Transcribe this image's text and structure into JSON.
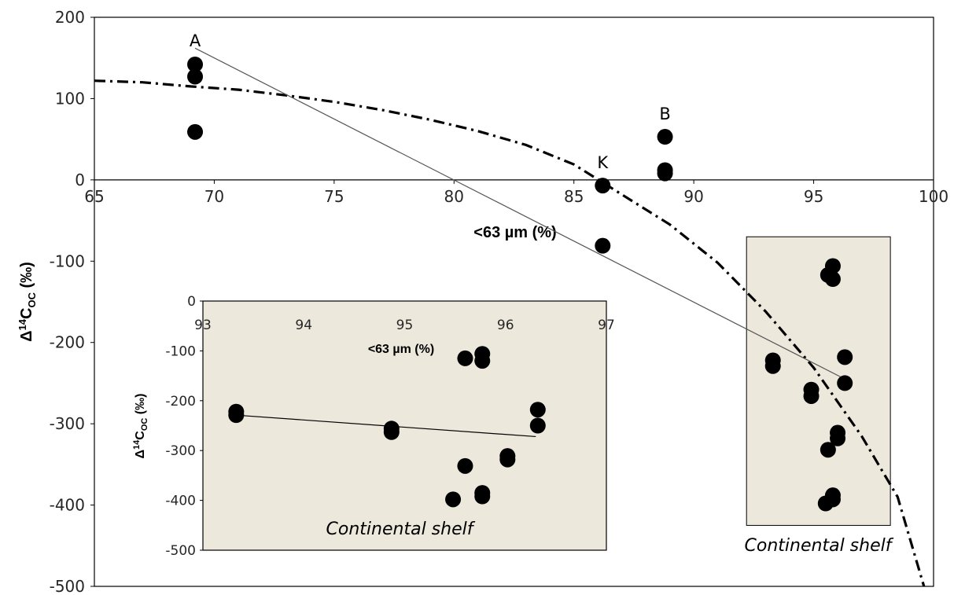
{
  "chart_data": [
    {
      "type": "scatter",
      "xlabel": "<63 µm (%)",
      "ylabel_parts": [
        "Δ",
        "14",
        "C",
        "OC",
        " (‰)"
      ],
      "xlim": [
        65,
        100
      ],
      "ylim": [
        -500,
        200
      ],
      "xticks": [
        "65",
        "70",
        "75",
        "80",
        "85",
        "90",
        "95",
        "100"
      ],
      "yticks": [
        "200",
        "100",
        "0",
        "-100",
        "-200",
        "-300",
        "-400",
        "-500"
      ],
      "grid": false,
      "points": [
        {
          "x": 69.2,
          "y": 142
        },
        {
          "x": 69.2,
          "y": 127
        },
        {
          "x": 69.2,
          "y": 59
        },
        {
          "x": 86.2,
          "y": -7
        },
        {
          "x": 86.2,
          "y": -81
        },
        {
          "x": 88.8,
          "y": 53
        },
        {
          "x": 88.8,
          "y": 12
        },
        {
          "x": 88.8,
          "y": 8
        },
        {
          "x": 93.3,
          "y": -222
        },
        {
          "x": 93.3,
          "y": -229
        },
        {
          "x": 94.9,
          "y": -258
        },
        {
          "x": 94.9,
          "y": -266
        },
        {
          "x": 95.6,
          "y": -117
        },
        {
          "x": 95.8,
          "y": -106
        },
        {
          "x": 95.8,
          "y": -122
        },
        {
          "x": 95.6,
          "y": -332
        },
        {
          "x": 96.0,
          "y": -311
        },
        {
          "x": 96.0,
          "y": -318
        },
        {
          "x": 95.8,
          "y": -388
        },
        {
          "x": 95.8,
          "y": -393
        },
        {
          "x": 95.5,
          "y": -398
        },
        {
          "x": 96.3,
          "y": -218
        },
        {
          "x": 96.3,
          "y": -250
        }
      ],
      "point_labels": [
        {
          "text": "A",
          "x": 69.2,
          "y": 172
        },
        {
          "text": "K",
          "x": 86.2,
          "y": 22
        },
        {
          "text": "B",
          "x": 88.8,
          "y": 82
        }
      ],
      "trend_line": {
        "x": [
          69.2,
          96.3
        ],
        "y": [
          162,
          -245
        ]
      },
      "curve_dashdot": {
        "x": [
          65,
          67,
          69,
          71,
          73,
          75,
          77,
          79,
          81,
          83,
          85,
          87,
          89,
          91,
          93,
          95,
          97,
          98.5,
          99.6
        ],
        "y": [
          122,
          120,
          115,
          111,
          104,
          96,
          86,
          74,
          60,
          43,
          19,
          -18,
          -55,
          -102,
          -162,
          -231,
          -315,
          -390,
          -500
        ]
      },
      "annotation": "Continental shelf",
      "inset_box": {
        "x": [
          92.2,
          98.2
        ],
        "y": [
          -425,
          -70
        ]
      }
    },
    {
      "type": "scatter",
      "title": "",
      "xlabel": "<63 µm (%)",
      "ylabel_parts": [
        "Δ",
        "14",
        "C",
        "OC",
        " (‰)"
      ],
      "xlim": [
        93,
        97
      ],
      "ylim": [
        -500,
        0
      ],
      "xticks": [
        "93",
        "94",
        "95",
        "96",
        "97"
      ],
      "yticks": [
        "0",
        "-100",
        "-200",
        "-300",
        "-400",
        "-500"
      ],
      "grid": false,
      "points": [
        {
          "x": 93.33,
          "y": -222
        },
        {
          "x": 93.33,
          "y": -229
        },
        {
          "x": 94.87,
          "y": -256
        },
        {
          "x": 94.87,
          "y": -263
        },
        {
          "x": 95.6,
          "y": -115
        },
        {
          "x": 95.77,
          "y": -106
        },
        {
          "x": 95.77,
          "y": -120
        },
        {
          "x": 95.6,
          "y": -331
        },
        {
          "x": 96.02,
          "y": -311
        },
        {
          "x": 96.02,
          "y": -318
        },
        {
          "x": 95.77,
          "y": -385
        },
        {
          "x": 95.77,
          "y": -392
        },
        {
          "x": 95.48,
          "y": -398
        },
        {
          "x": 96.32,
          "y": -218
        },
        {
          "x": 96.32,
          "y": -250
        }
      ],
      "trend_line": {
        "x": [
          93.33,
          96.3
        ],
        "y": [
          -229,
          -272
        ]
      },
      "annotation": "Continental shelf",
      "background": "#ece8dc"
    }
  ]
}
